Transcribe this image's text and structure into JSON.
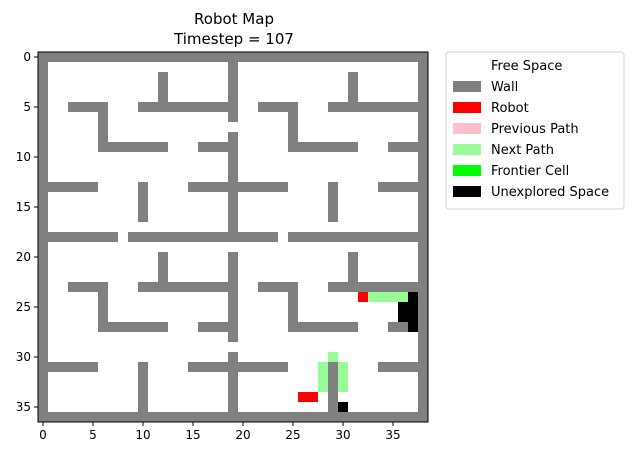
{
  "chart_data": {
    "type": "heatmap",
    "title": "Robot Map",
    "subtitle": "Timestep = 107",
    "grid_cols": 39,
    "grid_rows": 37,
    "xlim": [
      -0.5,
      38.5
    ],
    "ylim": [
      36.5,
      -0.5
    ],
    "x_ticks": [
      0,
      5,
      10,
      15,
      20,
      25,
      30,
      35
    ],
    "y_ticks": [
      0,
      5,
      10,
      15,
      20,
      25,
      30,
      35
    ],
    "grid": false,
    "legend_position": "outside-right",
    "colors": {
      "free": "#ffffff",
      "wall": "#808080",
      "robot": "#ff0000",
      "previous_path": "#ffc0cb",
      "next_path": "#98fb98",
      "frontier": "#00ff00",
      "unexplored": "#000000"
    },
    "legend": [
      {
        "label": "Free Space",
        "key": "free"
      },
      {
        "label": "Wall",
        "key": "wall"
      },
      {
        "label": "Robot",
        "key": "robot"
      },
      {
        "label": "Previous Path",
        "key": "previous_path"
      },
      {
        "label": "Next Path",
        "key": "next_path"
      },
      {
        "label": "Frontier Cell",
        "key": "frontier"
      },
      {
        "label": "Unexplored Space",
        "key": "unexplored"
      }
    ],
    "layers": {
      "wall": [
        [
          0,
          0,
          38,
          0
        ],
        [
          0,
          36,
          38,
          36
        ],
        [
          0,
          0,
          0,
          36
        ],
        [
          38,
          0,
          38,
          36
        ],
        [
          19,
          0,
          19,
          6
        ],
        [
          19,
          8,
          19,
          18
        ],
        [
          19,
          20,
          19,
          28
        ],
        [
          19,
          30,
          19,
          36
        ],
        [
          0,
          18,
          7,
          18
        ],
        [
          9,
          18,
          23,
          18
        ],
        [
          25,
          18,
          38,
          18
        ],
        [
          12,
          2,
          12,
          4
        ],
        [
          10,
          5,
          18,
          5
        ],
        [
          3,
          5,
          6,
          5
        ],
        [
          6,
          5,
          6,
          9
        ],
        [
          6,
          9,
          12,
          9
        ],
        [
          16,
          9,
          18,
          9
        ],
        [
          22,
          5,
          24,
          5
        ],
        [
          25,
          5,
          25,
          9
        ],
        [
          25,
          9,
          31,
          9
        ],
        [
          31,
          2,
          31,
          4
        ],
        [
          29,
          5,
          37,
          5
        ],
        [
          35,
          9,
          37,
          9
        ],
        [
          0,
          13,
          5,
          13
        ],
        [
          10,
          13,
          10,
          16
        ],
        [
          15,
          13,
          24,
          13
        ],
        [
          29,
          13,
          29,
          16
        ],
        [
          34,
          13,
          37,
          13
        ],
        [
          12,
          20,
          12,
          22
        ],
        [
          10,
          23,
          18,
          23
        ],
        [
          3,
          23,
          6,
          23
        ],
        [
          6,
          23,
          6,
          27
        ],
        [
          6,
          27,
          12,
          27
        ],
        [
          16,
          27,
          18,
          27
        ],
        [
          22,
          23,
          24,
          23
        ],
        [
          25,
          23,
          25,
          27
        ],
        [
          25,
          27,
          31,
          27
        ],
        [
          31,
          20,
          31,
          22
        ],
        [
          29,
          23,
          37,
          23
        ],
        [
          35,
          27,
          37,
          27
        ],
        [
          0,
          31,
          5,
          31
        ],
        [
          10,
          31,
          10,
          35
        ],
        [
          15,
          31,
          24,
          31
        ],
        [
          29,
          31,
          29,
          35
        ],
        [
          34,
          31,
          37,
          31
        ]
      ],
      "robot": [
        [
          32,
          24,
          32,
          24
        ],
        [
          26,
          34,
          27,
          34
        ]
      ],
      "next_path": [
        [
          33,
          24,
          36,
          24
        ],
        [
          29,
          30,
          29,
          30
        ],
        [
          28,
          31,
          28,
          33
        ],
        [
          30,
          31,
          30,
          33
        ]
      ],
      "unexplored": [
        [
          37,
          24,
          37,
          27
        ],
        [
          36,
          25,
          36,
          26
        ],
        [
          30,
          35,
          30,
          35
        ]
      ]
    }
  }
}
